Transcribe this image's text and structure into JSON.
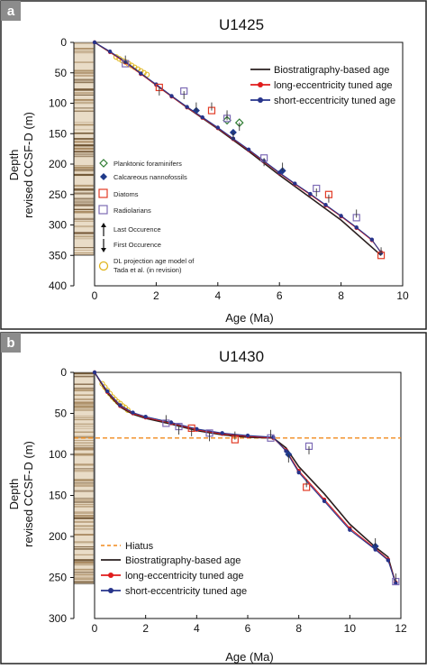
{
  "colors": {
    "bio": "#2a1f1f",
    "long": "#e01b1b",
    "short": "#27348b",
    "foram": "#2f7d32",
    "nanno": "#1f3a8a",
    "diatom": "#e23b26",
    "radiolarian": "#7d6bb5",
    "dl": "#e0b51d",
    "hiatus": "#f08a1c",
    "core_light": "#e9dcc7",
    "core_dark": "#6e5230"
  },
  "chart_data": [
    {
      "panel_label": "a",
      "type": "line",
      "title": "U1425",
      "xlabel": "Age (Ma)",
      "ylabel_line1": "Depth",
      "ylabel_line2": "revised CCSF-D (m)",
      "xlim": [
        0,
        10
      ],
      "ylim": [
        0,
        400
      ],
      "xticks": [
        0,
        2,
        4,
        6,
        8,
        10
      ],
      "yticks": [
        0,
        50,
        100,
        150,
        200,
        250,
        300,
        350,
        400
      ],
      "y_inverted": true,
      "core_bottom_depth": 350,
      "series": [
        {
          "name": "Biostratigraphy-based age",
          "key": "bio",
          "marker": "none",
          "x": [
            0,
            1.0,
            2.0,
            3.0,
            4.0,
            5.0,
            6.0,
            7.0,
            8.0,
            9.3
          ],
          "y": [
            0,
            32,
            70,
            107,
            142,
            179,
            218,
            255,
            292,
            350
          ]
        },
        {
          "name": "long-eccentricity tuned age",
          "key": "long",
          "marker": "circle",
          "x": [
            0,
            0.5,
            1.0,
            1.5,
            2.0,
            2.5,
            3.0,
            3.5,
            4.0,
            4.5,
            5.0,
            5.5,
            6.0,
            6.5,
            7.0,
            7.5,
            8.0,
            8.5,
            9.0,
            9.3
          ],
          "y": [
            0,
            16,
            33,
            52,
            70,
            89,
            107,
            124,
            141,
            159,
            177,
            196,
            215,
            233,
            250,
            268,
            286,
            305,
            325,
            345
          ]
        },
        {
          "name": "short-eccentricity tuned age",
          "key": "short",
          "marker": "circle",
          "x": [
            0,
            0.5,
            1.0,
            1.5,
            2.0,
            2.5,
            3.0,
            3.5,
            4.0,
            4.5,
            5.0,
            5.5,
            6.0,
            6.5,
            7.0,
            7.5,
            8.0,
            8.5,
            9.0,
            9.3
          ],
          "y": [
            0,
            15,
            32,
            51,
            69,
            88,
            106,
            123,
            140,
            158,
            176,
            195,
            214,
            232,
            249,
            267,
            285,
            304,
            324,
            346
          ]
        }
      ],
      "dl_points": {
        "name": "DL projection age model of Tada et al. (in revision)",
        "x": [
          0.7,
          0.8,
          0.9,
          1.0,
          1.1,
          1.2,
          1.3,
          1.4,
          1.5,
          1.6,
          1.7
        ],
        "y": [
          24,
          27,
          30,
          32,
          35,
          38,
          41,
          44,
          47,
          50,
          53
        ]
      },
      "datums": [
        {
          "group": "foram",
          "x": 4.3,
          "y": 128
        },
        {
          "group": "foram",
          "x": 4.7,
          "y": 132
        },
        {
          "group": "nanno",
          "x": 3.3,
          "y": 112
        },
        {
          "group": "nanno",
          "x": 4.5,
          "y": 148
        },
        {
          "group": "nanno",
          "x": 6.1,
          "y": 211
        },
        {
          "group": "diatom",
          "x": 2.1,
          "y": 74
        },
        {
          "group": "diatom",
          "x": 3.8,
          "y": 112
        },
        {
          "group": "diatom",
          "x": 7.6,
          "y": 250
        },
        {
          "group": "diatom",
          "x": 9.3,
          "y": 350
        },
        {
          "group": "radiolarian",
          "x": 2.9,
          "y": 80
        },
        {
          "group": "radiolarian",
          "x": 4.3,
          "y": 125
        },
        {
          "group": "radiolarian",
          "x": 7.2,
          "y": 240
        },
        {
          "group": "radiolarian",
          "x": 8.5,
          "y": 288
        },
        {
          "group": "radiolarian",
          "x": 5.5,
          "y": 190
        },
        {
          "group": "radiolarian",
          "x": 1.0,
          "y": 35
        }
      ],
      "legend_right": {
        "bio": "Biostratigraphy-based age",
        "long": "long-eccentricity tuned age",
        "short": "short-eccentricity tuned age"
      },
      "legend_left": {
        "foram": "Planktonic foraminifers",
        "nanno": "Calcareous nannofossils",
        "diatom": "Diatoms",
        "radiolarian": "Radiolarians",
        "lo": "Last Occurence",
        "fo": "First Occurence",
        "dl1": "DL projection age model of",
        "dl2": "Tada et al. (in revision)"
      }
    },
    {
      "panel_label": "b",
      "type": "line",
      "title": "U1430",
      "xlabel": "Age (Ma)",
      "ylabel_line1": "Depth",
      "ylabel_line2": "revised CCSF-D (m)",
      "xlim": [
        0,
        12
      ],
      "ylim": [
        0,
        300
      ],
      "xticks": [
        0,
        2,
        4,
        6,
        8,
        10,
        12
      ],
      "yticks": [
        0,
        50,
        100,
        150,
        200,
        250,
        300
      ],
      "y_inverted": true,
      "core_bottom_depth": 258,
      "hiatus_depth": 80,
      "series": [
        {
          "name": "Biostratigraphy-based age",
          "key": "bio",
          "marker": "none",
          "x": [
            0,
            0.5,
            1.0,
            1.5,
            2.0,
            3.0,
            4.0,
            5.0,
            6.0,
            7.0,
            7.5,
            8.0,
            9.0,
            10.0,
            11.0,
            11.5,
            11.8
          ],
          "y": [
            0,
            25,
            42,
            51,
            56,
            63,
            71,
            76,
            79,
            80,
            92,
            115,
            148,
            185,
            213,
            225,
            258
          ]
        },
        {
          "name": "long-eccentricity tuned age",
          "key": "long",
          "marker": "circle",
          "x": [
            0,
            0.5,
            1.0,
            1.5,
            2.0,
            3.0,
            4.0,
            5.0,
            6.0,
            7.0,
            7.5,
            8.0,
            9.0,
            10.0,
            11.0,
            11.5,
            11.8
          ],
          "y": [
            0,
            24,
            41,
            50,
            55,
            62,
            70,
            75,
            78,
            80,
            95,
            120,
            155,
            190,
            215,
            228,
            256
          ]
        },
        {
          "name": "short-eccentricity tuned age",
          "key": "short",
          "marker": "circle",
          "x": [
            0,
            0.5,
            1.0,
            1.5,
            2.0,
            3.0,
            4.0,
            5.0,
            6.0,
            7.0,
            7.5,
            8.0,
            9.0,
            10.0,
            11.0,
            11.5,
            11.8
          ],
          "y": [
            0,
            23,
            40,
            49,
            54,
            61,
            69,
            74,
            77,
            79,
            96,
            122,
            157,
            192,
            216,
            229,
            257
          ]
        }
      ],
      "dl_points": {
        "name": "DL",
        "x": [
          0.3,
          0.4,
          0.5,
          0.6,
          0.7,
          0.8,
          0.9,
          1.0,
          1.1,
          1.2,
          1.3
        ],
        "y": [
          14,
          18,
          22,
          26,
          30,
          33,
          36,
          38,
          41,
          43,
          46
        ]
      },
      "datums": [
        {
          "group": "radiolarian",
          "x": 2.8,
          "y": 62
        },
        {
          "group": "radiolarian",
          "x": 4.5,
          "y": 74
        },
        {
          "group": "radiolarian",
          "x": 6.9,
          "y": 80
        },
        {
          "group": "radiolarian",
          "x": 8.4,
          "y": 90
        },
        {
          "group": "radiolarian",
          "x": 11.8,
          "y": 255
        },
        {
          "group": "radiolarian",
          "x": 3.3,
          "y": 66
        },
        {
          "group": "diatom",
          "x": 5.5,
          "y": 82
        },
        {
          "group": "diatom",
          "x": 3.8,
          "y": 68
        },
        {
          "group": "diatom",
          "x": 8.3,
          "y": 140
        },
        {
          "group": "nanno",
          "x": 7.6,
          "y": 100
        },
        {
          "group": "nanno",
          "x": 11.0,
          "y": 212
        }
      ],
      "legend": {
        "hiatus": "Hiatus",
        "bio": "Biostratigraphy-based age",
        "long": "long-eccentricity tuned age",
        "short": "short-eccentricity tuned age"
      }
    }
  ]
}
